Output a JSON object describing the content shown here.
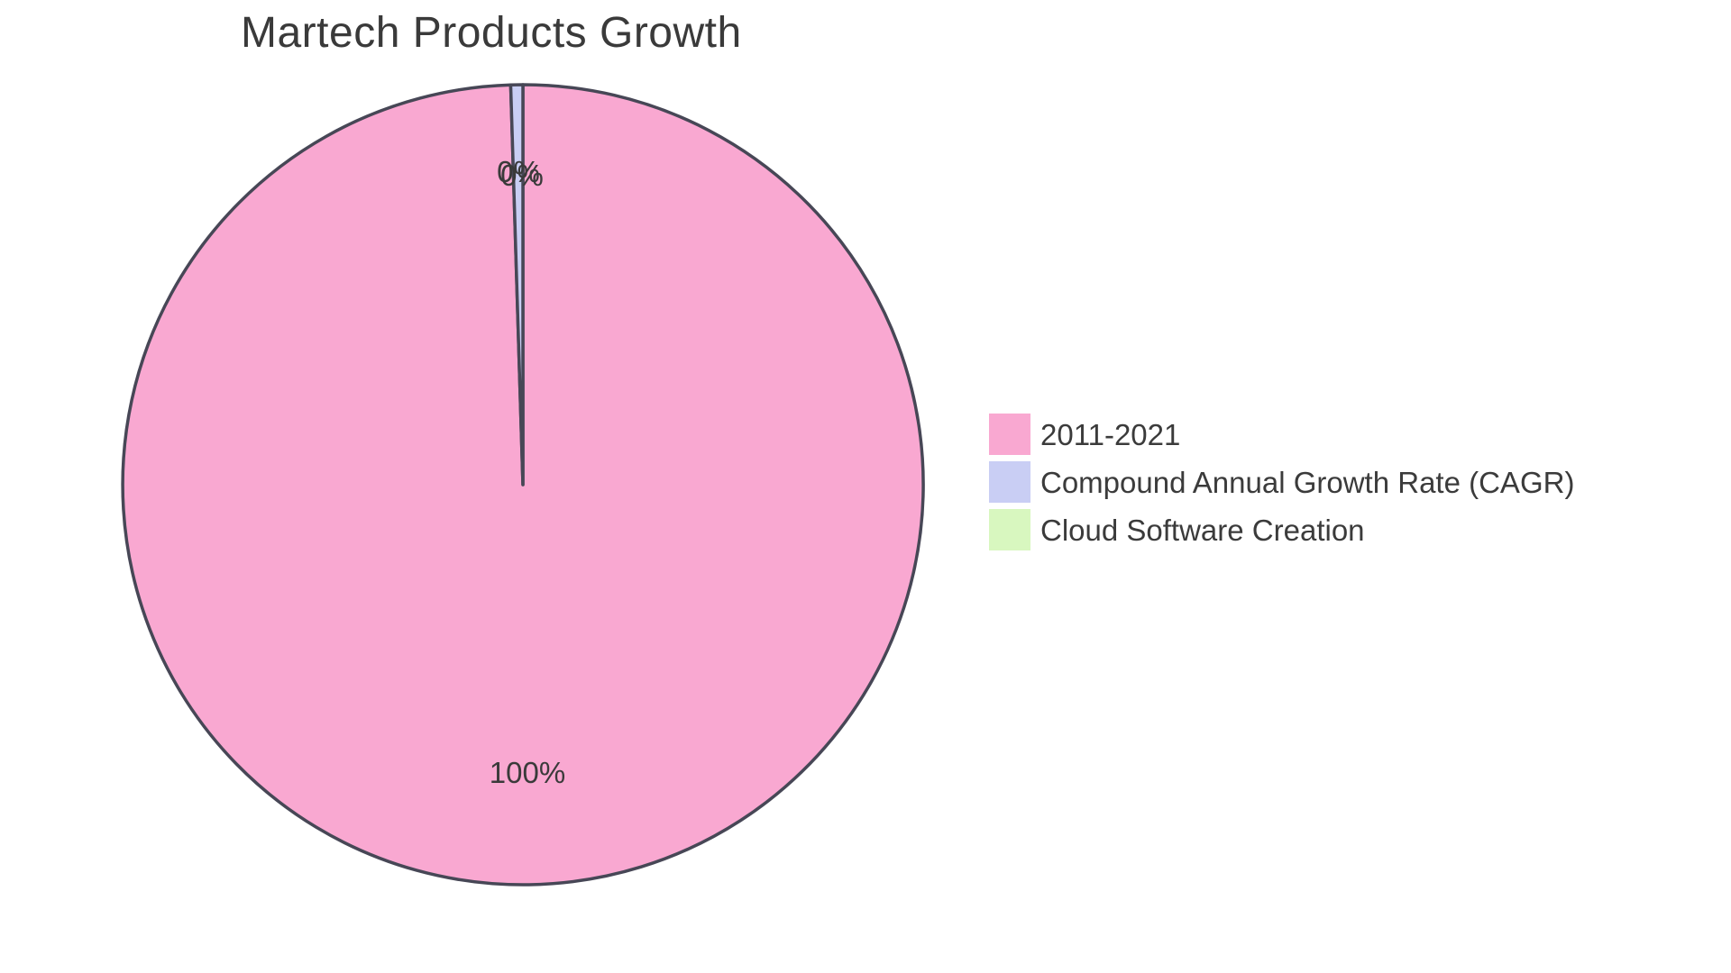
{
  "page": {
    "background_color": "#FFFFFF"
  },
  "chart_data": {
    "type": "pie",
    "title": "Martech Products Growth",
    "series": [
      {
        "label": "2011-2021",
        "value_pct": 100,
        "displayed_label": "100%",
        "color": "#F9A8D1",
        "arc_deg": 358.25
      },
      {
        "label": "Compound Annual Growth Rate (CAGR)",
        "value_pct": 0,
        "displayed_label": "0%",
        "color": "#C9CEF4",
        "arc_deg": 1.75
      },
      {
        "label": "Cloud Software Creation",
        "value_pct": 0,
        "displayed_label": "0%",
        "color": "#D8F7BF",
        "arc_deg": 0
      }
    ],
    "start_angle_deg": 0,
    "direction": "clockwise",
    "slice_border_color": "#474756",
    "slice_border_width": 3.5,
    "label_color": "#3A3A3A",
    "legend_position": "right",
    "legend_text_color": "#3B3B3B",
    "title_color": "#3A3A3A"
  }
}
